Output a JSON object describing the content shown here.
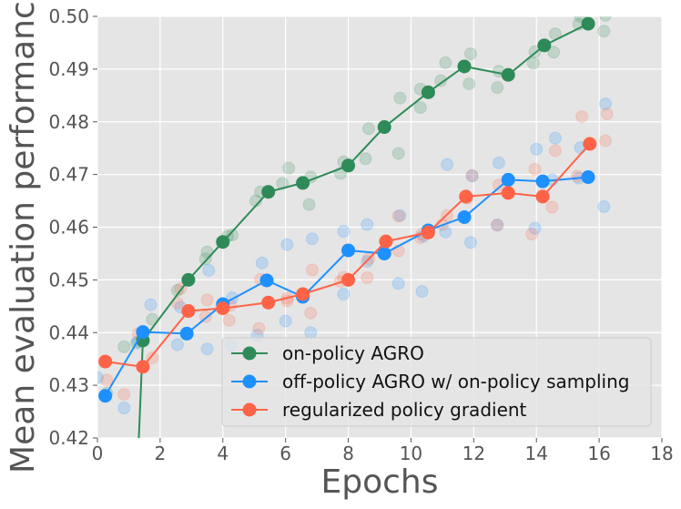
{
  "chart_data": {
    "type": "line",
    "title": "",
    "xlabel": "Epochs",
    "ylabel": "Mean evaluation performance",
    "xlim": [
      0,
      18
    ],
    "ylim": [
      0.42,
      0.5
    ],
    "xticks": [
      0,
      2,
      4,
      6,
      8,
      10,
      12,
      14,
      16,
      18
    ],
    "xtick_labels": [
      "0",
      "2",
      "4",
      "6",
      "8",
      "10",
      "12",
      "14",
      "16",
      "18"
    ],
    "yticks": [
      0.42,
      0.43,
      0.44,
      0.45,
      0.46,
      0.47,
      0.48,
      0.49,
      0.5
    ],
    "ytick_labels": [
      "0.42",
      "0.43",
      "0.44",
      "0.45",
      "0.46",
      "0.47",
      "0.48",
      "0.49",
      "0.50"
    ],
    "grid": true,
    "legend_position": "lower-right",
    "series": [
      {
        "name": "on-policy AGRO",
        "color": "#2e8b57",
        "x": [
          1.3,
          1.45,
          2.9,
          4.0,
          5.45,
          6.55,
          8.0,
          9.15,
          10.55,
          11.7,
          13.1,
          14.25,
          15.65
        ],
        "y": [
          0.417,
          0.4385,
          0.45,
          0.4572,
          0.4667,
          0.4684,
          0.4717,
          0.479,
          0.4856,
          0.4905,
          0.4889,
          0.4945,
          0.4986
        ],
        "scatter_x": [
          0.3,
          0.85,
          1.25,
          1.75,
          2.55,
          2.9,
          3.45,
          3.5,
          4.15,
          4.3,
          5.05,
          5.2,
          5.9,
          6.1,
          6.75,
          6.8,
          7.75,
          7.85,
          8.55,
          8.65,
          9.6,
          9.65,
          10.3,
          10.3,
          10.95,
          11.1,
          11.85,
          11.9,
          12.75,
          12.8,
          13.9,
          13.95,
          14.55,
          14.6,
          15.35,
          15.4,
          16.15,
          16.2
        ],
        "scatter_y": [
          0.4285,
          0.4373,
          0.438,
          0.4425,
          0.448,
          0.45,
          0.454,
          0.4553,
          0.4583,
          0.4585,
          0.465,
          0.4667,
          0.4683,
          0.4712,
          0.4643,
          0.4695,
          0.4702,
          0.4724,
          0.473,
          0.4787,
          0.474,
          0.4845,
          0.4827,
          0.4862,
          0.4878,
          0.4912,
          0.4872,
          0.4929,
          0.4865,
          0.4896,
          0.4911,
          0.4933,
          0.4932,
          0.4967,
          0.4985,
          0.5,
          0.4972,
          0.5002
        ]
      },
      {
        "name": "off-policy AGRO w/ on-policy sampling",
        "color": "#1e90ff",
        "x": [
          0.25,
          1.45,
          2.85,
          4.0,
          5.4,
          6.55,
          8.0,
          9.15,
          10.55,
          11.7,
          13.1,
          14.2,
          15.65
        ],
        "y": [
          0.428,
          0.4401,
          0.4398,
          0.4454,
          0.4499,
          0.4468,
          0.4556,
          0.455,
          0.4594,
          0.4619,
          0.469,
          0.4687,
          0.4695
        ],
        "scatter_x": [
          0.0,
          0.85,
          1.3,
          1.7,
          2.55,
          2.65,
          3.5,
          3.55,
          4.25,
          4.3,
          5.1,
          5.25,
          6.0,
          6.05,
          6.8,
          6.85,
          7.85,
          7.85,
          8.6,
          8.6,
          9.6,
          9.65,
          10.35,
          10.4,
          11.1,
          11.15,
          11.9,
          11.95,
          12.75,
          12.8,
          13.95,
          14.0,
          14.5,
          14.6,
          15.35,
          15.4,
          16.15,
          16.2
        ],
        "scatter_y": [
          0.4315,
          0.4257,
          0.4383,
          0.4453,
          0.4377,
          0.4448,
          0.4369,
          0.4518,
          0.4375,
          0.4466,
          0.4395,
          0.4532,
          0.4422,
          0.4567,
          0.44,
          0.4578,
          0.4473,
          0.4592,
          0.4535,
          0.4605,
          0.4493,
          0.4622,
          0.4478,
          0.4583,
          0.4591,
          0.4719,
          0.4571,
          0.4697,
          0.4604,
          0.4722,
          0.4598,
          0.4748,
          0.469,
          0.4769,
          0.4693,
          0.4751,
          0.4639,
          0.4834
        ]
      },
      {
        "name": "regularized policy gradient",
        "color": "#ff6347",
        "x": [
          0.25,
          1.45,
          2.9,
          4.0,
          5.45,
          6.55,
          8.0,
          9.2,
          10.55,
          11.75,
          13.1,
          14.2,
          15.7
        ],
        "y": [
          0.4345,
          0.4335,
          0.4441,
          0.4446,
          0.4457,
          0.4473,
          0.45,
          0.4573,
          0.459,
          0.4658,
          0.4665,
          0.4658,
          0.4758
        ],
        "scatter_x": [
          0.3,
          0.85,
          1.3,
          1.75,
          2.55,
          2.65,
          3.45,
          3.5,
          4.2,
          4.25,
          5.15,
          5.2,
          6.05,
          6.05,
          6.8,
          6.85,
          7.75,
          7.85,
          8.6,
          8.65,
          9.6,
          9.6,
          10.3,
          10.35,
          11.0,
          11.15,
          11.8,
          11.95,
          12.75,
          12.8,
          13.85,
          13.95,
          14.5,
          14.6,
          15.3,
          15.45,
          16.2,
          16.25
        ],
        "scatter_y": [
          0.431,
          0.4283,
          0.4398,
          0.4352,
          0.4456,
          0.4483,
          0.443,
          0.4462,
          0.4423,
          0.4452,
          0.4408,
          0.4501,
          0.446,
          0.4465,
          0.4437,
          0.4519,
          0.4497,
          0.4505,
          0.4504,
          0.454,
          0.4555,
          0.4621,
          0.458,
          0.4587,
          0.4605,
          0.4622,
          0.4655,
          0.4698,
          0.4604,
          0.468,
          0.4587,
          0.471,
          0.4638,
          0.4745,
          0.4697,
          0.481,
          0.4764,
          0.4815
        ]
      }
    ]
  }
}
